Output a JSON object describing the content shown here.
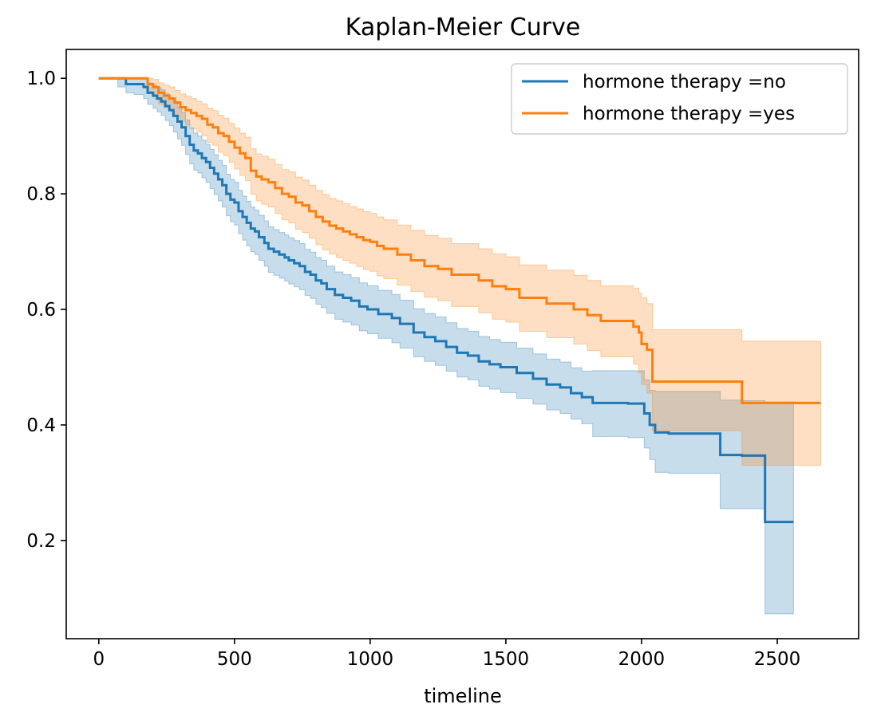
{
  "chart_data": {
    "type": "line",
    "title": "Kaplan-Meier Curve",
    "xlabel": "timeline",
    "ylabel": "",
    "xlim": [
      -120,
      2800
    ],
    "ylim": [
      0.03,
      1.05
    ],
    "xticks": [
      0,
      500,
      1000,
      1500,
      2000,
      2500
    ],
    "yticks": [
      0.2,
      0.4,
      0.6,
      0.8,
      1.0
    ],
    "xtick_labels": [
      "0",
      "500",
      "1000",
      "1500",
      "2000",
      "2500"
    ],
    "ytick_labels": [
      "0.2",
      "0.4",
      "0.6",
      "0.8",
      "1.0"
    ],
    "grid": false,
    "legend_position": "top-right",
    "series": [
      {
        "name": "hormone therapy =no",
        "color": "#1f77b4",
        "x": [
          0,
          70,
          100,
          130,
          165,
          180,
          200,
          215,
          230,
          245,
          260,
          275,
          290,
          305,
          320,
          335,
          350,
          365,
          380,
          395,
          410,
          425,
          440,
          455,
          470,
          485,
          500,
          515,
          530,
          545,
          560,
          575,
          590,
          610,
          625,
          645,
          665,
          685,
          700,
          720,
          740,
          760,
          780,
          800,
          820,
          840,
          870,
          900,
          930,
          960,
          990,
          1030,
          1080,
          1110,
          1160,
          1200,
          1240,
          1280,
          1320,
          1360,
          1400,
          1440,
          1480,
          1540,
          1600,
          1650,
          1700,
          1740,
          1780,
          1820,
          1950,
          2010,
          2030,
          2050,
          2100,
          2290,
          2370,
          2400,
          2455,
          2560
        ],
        "y": [
          1.0,
          1.0,
          0.99,
          0.99,
          0.985,
          0.975,
          0.97,
          0.965,
          0.96,
          0.952,
          0.945,
          0.935,
          0.925,
          0.915,
          0.9,
          0.885,
          0.875,
          0.87,
          0.862,
          0.855,
          0.845,
          0.835,
          0.825,
          0.815,
          0.8,
          0.79,
          0.785,
          0.77,
          0.76,
          0.75,
          0.74,
          0.735,
          0.725,
          0.715,
          0.705,
          0.7,
          0.695,
          0.69,
          0.685,
          0.68,
          0.675,
          0.665,
          0.66,
          0.65,
          0.645,
          0.635,
          0.625,
          0.62,
          0.615,
          0.605,
          0.6,
          0.592,
          0.585,
          0.575,
          0.56,
          0.552,
          0.545,
          0.535,
          0.525,
          0.52,
          0.51,
          0.505,
          0.5,
          0.49,
          0.48,
          0.47,
          0.465,
          0.455,
          0.448,
          0.438,
          0.437,
          0.42,
          0.4,
          0.387,
          0.385,
          0.348,
          0.347,
          0.347,
          0.232,
          0.232
        ],
        "ci_upper": [
          1.0,
          1.0,
          1.0,
          1.0,
          0.999,
          0.992,
          0.988,
          0.984,
          0.98,
          0.973,
          0.967,
          0.958,
          0.95,
          0.941,
          0.928,
          0.914,
          0.905,
          0.9,
          0.893,
          0.886,
          0.877,
          0.868,
          0.858,
          0.849,
          0.834,
          0.825,
          0.82,
          0.806,
          0.796,
          0.787,
          0.777,
          0.772,
          0.763,
          0.753,
          0.743,
          0.738,
          0.733,
          0.729,
          0.724,
          0.719,
          0.714,
          0.704,
          0.699,
          0.69,
          0.685,
          0.675,
          0.665,
          0.66,
          0.655,
          0.646,
          0.641,
          0.633,
          0.626,
          0.616,
          0.601,
          0.593,
          0.587,
          0.577,
          0.567,
          0.562,
          0.553,
          0.548,
          0.543,
          0.533,
          0.523,
          0.514,
          0.509,
          0.499,
          0.493,
          0.494,
          0.494,
          0.478,
          0.46,
          0.458,
          0.458,
          0.443,
          0.442,
          0.442,
          0.44,
          0.44
        ],
        "ci_lower": [
          1.0,
          0.985,
          0.975,
          0.972,
          0.965,
          0.955,
          0.948,
          0.942,
          0.936,
          0.927,
          0.918,
          0.907,
          0.895,
          0.884,
          0.868,
          0.852,
          0.841,
          0.836,
          0.828,
          0.82,
          0.809,
          0.799,
          0.788,
          0.777,
          0.762,
          0.752,
          0.746,
          0.731,
          0.72,
          0.71,
          0.7,
          0.695,
          0.685,
          0.675,
          0.664,
          0.659,
          0.654,
          0.649,
          0.644,
          0.639,
          0.634,
          0.624,
          0.619,
          0.609,
          0.603,
          0.593,
          0.583,
          0.578,
          0.573,
          0.563,
          0.558,
          0.55,
          0.542,
          0.533,
          0.518,
          0.51,
          0.503,
          0.493,
          0.483,
          0.478,
          0.467,
          0.462,
          0.456,
          0.446,
          0.436,
          0.426,
          0.42,
          0.41,
          0.402,
          0.38,
          0.378,
          0.36,
          0.34,
          0.318,
          0.316,
          0.255,
          0.255,
          0.255,
          0.073,
          0.073
        ]
      },
      {
        "name": "hormone therapy =yes",
        "color": "#ff7f0e",
        "x": [
          0,
          165,
          180,
          200,
          220,
          240,
          260,
          280,
          300,
          320,
          340,
          360,
          380,
          400,
          420,
          440,
          460,
          480,
          500,
          520,
          540,
          560,
          580,
          600,
          625,
          650,
          675,
          700,
          725,
          750,
          775,
          800,
          825,
          850,
          875,
          900,
          925,
          950,
          975,
          1000,
          1025,
          1050,
          1100,
          1150,
          1200,
          1250,
          1300,
          1400,
          1450,
          1500,
          1550,
          1650,
          1750,
          1800,
          1850,
          1970,
          1990,
          2000,
          2020,
          2040,
          2370,
          2450,
          2500,
          2660
        ],
        "y": [
          1.0,
          1.0,
          0.99,
          0.985,
          0.975,
          0.97,
          0.965,
          0.958,
          0.95,
          0.945,
          0.94,
          0.935,
          0.93,
          0.92,
          0.915,
          0.905,
          0.9,
          0.89,
          0.88,
          0.87,
          0.862,
          0.84,
          0.83,
          0.825,
          0.82,
          0.81,
          0.8,
          0.795,
          0.785,
          0.78,
          0.77,
          0.76,
          0.752,
          0.745,
          0.74,
          0.735,
          0.73,
          0.725,
          0.72,
          0.717,
          0.71,
          0.705,
          0.695,
          0.685,
          0.675,
          0.67,
          0.66,
          0.65,
          0.64,
          0.635,
          0.62,
          0.61,
          0.6,
          0.59,
          0.58,
          0.57,
          0.56,
          0.54,
          0.53,
          0.475,
          0.438,
          0.438,
          0.438,
          0.438
        ],
        "ci_upper": [
          1.0,
          1.0,
          1.0,
          0.998,
          0.992,
          0.988,
          0.985,
          0.979,
          0.973,
          0.969,
          0.965,
          0.96,
          0.956,
          0.948,
          0.944,
          0.936,
          0.931,
          0.922,
          0.914,
          0.905,
          0.898,
          0.878,
          0.869,
          0.865,
          0.86,
          0.851,
          0.842,
          0.838,
          0.829,
          0.824,
          0.815,
          0.806,
          0.799,
          0.792,
          0.788,
          0.783,
          0.778,
          0.774,
          0.769,
          0.766,
          0.76,
          0.755,
          0.746,
          0.737,
          0.728,
          0.723,
          0.714,
          0.705,
          0.696,
          0.691,
          0.677,
          0.668,
          0.659,
          0.65,
          0.641,
          0.637,
          0.628,
          0.62,
          0.61,
          0.565,
          0.545,
          0.545,
          0.545,
          0.545
        ],
        "ci_lower": [
          1.0,
          1.0,
          0.975,
          0.968,
          0.955,
          0.949,
          0.943,
          0.934,
          0.925,
          0.919,
          0.913,
          0.907,
          0.901,
          0.889,
          0.884,
          0.872,
          0.866,
          0.855,
          0.843,
          0.832,
          0.823,
          0.799,
          0.788,
          0.782,
          0.777,
          0.766,
          0.755,
          0.75,
          0.739,
          0.733,
          0.723,
          0.712,
          0.703,
          0.696,
          0.69,
          0.685,
          0.68,
          0.674,
          0.669,
          0.666,
          0.658,
          0.653,
          0.642,
          0.631,
          0.621,
          0.615,
          0.605,
          0.594,
          0.583,
          0.578,
          0.562,
          0.551,
          0.54,
          0.529,
          0.518,
          0.505,
          0.49,
          0.47,
          0.455,
          0.39,
          0.33,
          0.33,
          0.33,
          0.33
        ]
      }
    ]
  }
}
